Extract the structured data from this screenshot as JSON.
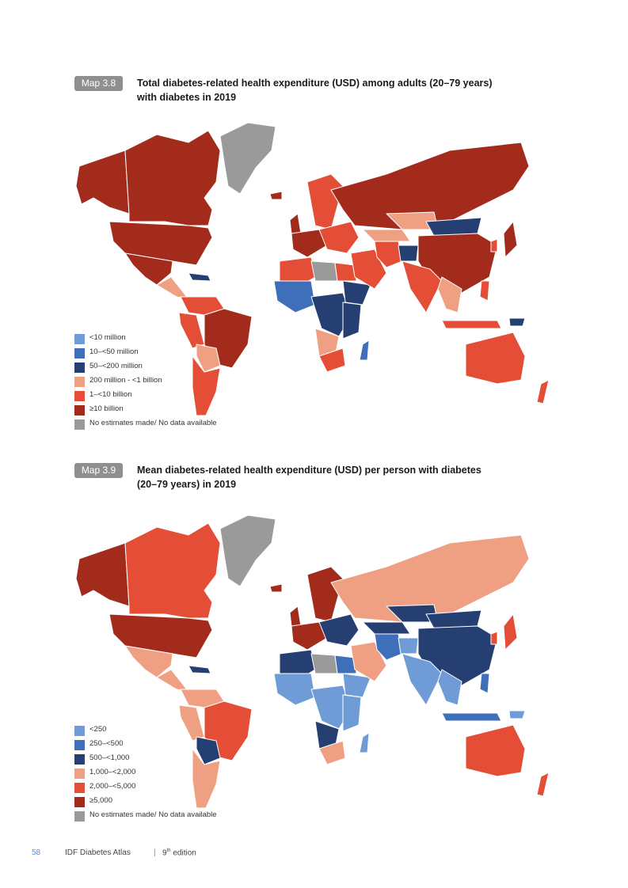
{
  "maps": [
    {
      "tag": "Map 3.8",
      "title_line1": "Total diabetes-related health expenditure (USD) among adults (20–79 years)",
      "title_line2": "with diabetes in 2019",
      "legend": [
        {
          "label": "<10 million",
          "color": "#6f9bd6"
        },
        {
          "label": "10–<50 million",
          "color": "#3f6fb8"
        },
        {
          "label": "50–<200 million",
          "color": "#263f73"
        },
        {
          "label": "200 million - <1 billion",
          "color": "#f0a082"
        },
        {
          "label": "1–<10 billion",
          "color": "#e44d36"
        },
        {
          "label": "≥10 billion",
          "color": "#a22b1c"
        },
        {
          "label": "No estimates made/ No data available",
          "color": "#9a9a9a"
        }
      ],
      "regions": {
        "alaska": "#a22b1c",
        "canada": "#a22b1c",
        "usa": "#a22b1c",
        "greenland": "#9a9a9a",
        "mexico": "#a22b1c",
        "central_america": "#f0a082",
        "caribbean": "#263f73",
        "colombia_venezuela": "#e44d36",
        "peru_ecuador": "#e44d36",
        "brazil": "#a22b1c",
        "bolivia_paraguay": "#f0a082",
        "argentina_chile": "#e44d36",
        "iceland": "#a22b1c",
        "uk": "#a22b1c",
        "western_europe": "#a22b1c",
        "scandinavia": "#e44d36",
        "eastern_europe": "#e44d36",
        "russia": "#a22b1c",
        "north_africa_west": "#e44d36",
        "sahara": "#9a9a9a",
        "egypt": "#e44d36",
        "west_africa": "#3f6fb8",
        "central_africa": "#263f73",
        "horn_africa": "#263f73",
        "east_africa": "#263f73",
        "angola_namibia": "#f0a082",
        "south_africa": "#e44d36",
        "madagascar": "#3f6fb8",
        "middle_east": "#e44d36",
        "iran": "#e44d36",
        "central_asia": "#f0a082",
        "afghanistan": "#263f73",
        "kazakhstan": "#f0a082",
        "mongolia": "#263f73",
        "china": "#a22b1c",
        "india": "#e44d36",
        "southeast_asia": "#f0a082",
        "japan": "#a22b1c",
        "korea": "#e44d36",
        "indonesia": "#e44d36",
        "philippines": "#e44d36",
        "png": "#263f73",
        "australia": "#e44d36",
        "new_zealand": "#e44d36"
      }
    },
    {
      "tag": "Map 3.9",
      "title_line1": "Mean diabetes-related health expenditure (USD) per person with diabetes",
      "title_line2": "(20–79 years) in 2019",
      "legend": [
        {
          "label": "<250",
          "color": "#6f9bd6"
        },
        {
          "label": "250–<500",
          "color": "#3f6fb8"
        },
        {
          "label": "500–<1,000",
          "color": "#263f73"
        },
        {
          "label": "1,000–<2,000",
          "color": "#f0a082"
        },
        {
          "label": "2,000–<5,000",
          "color": "#e44d36"
        },
        {
          "label": "≥5,000",
          "color": "#a22b1c"
        },
        {
          "label": "No estimates made/ No data available",
          "color": "#9a9a9a"
        }
      ],
      "regions": {
        "alaska": "#a22b1c",
        "canada": "#e44d36",
        "usa": "#a22b1c",
        "greenland": "#9a9a9a",
        "mexico": "#f0a082",
        "central_america": "#f0a082",
        "caribbean": "#263f73",
        "colombia_venezuela": "#f0a082",
        "peru_ecuador": "#f0a082",
        "brazil": "#e44d36",
        "bolivia_paraguay": "#263f73",
        "argentina_chile": "#f0a082",
        "iceland": "#a22b1c",
        "uk": "#a22b1c",
        "western_europe": "#a22b1c",
        "scandinavia": "#a22b1c",
        "eastern_europe": "#263f73",
        "russia": "#f0a082",
        "north_africa_west": "#263f73",
        "sahara": "#9a9a9a",
        "egypt": "#3f6fb8",
        "west_africa": "#6f9bd6",
        "central_africa": "#6f9bd6",
        "horn_africa": "#6f9bd6",
        "east_africa": "#6f9bd6",
        "angola_namibia": "#263f73",
        "south_africa": "#f0a082",
        "madagascar": "#6f9bd6",
        "middle_east": "#f0a082",
        "iran": "#3f6fb8",
        "central_asia": "#263f73",
        "afghanistan": "#6f9bd6",
        "kazakhstan": "#263f73",
        "mongolia": "#263f73",
        "china": "#263f73",
        "india": "#6f9bd6",
        "southeast_asia": "#6f9bd6",
        "japan": "#e44d36",
        "korea": "#e44d36",
        "indonesia": "#3f6fb8",
        "philippines": "#3f6fb8",
        "png": "#6f9bd6",
        "australia": "#e44d36",
        "new_zealand": "#e44d36"
      }
    }
  ],
  "footer": {
    "page_number": "58",
    "publication": "IDF Diabetes Atlas",
    "separator": "|",
    "edition_number": "9",
    "edition_suffix": "th",
    "edition_word": "edition"
  }
}
